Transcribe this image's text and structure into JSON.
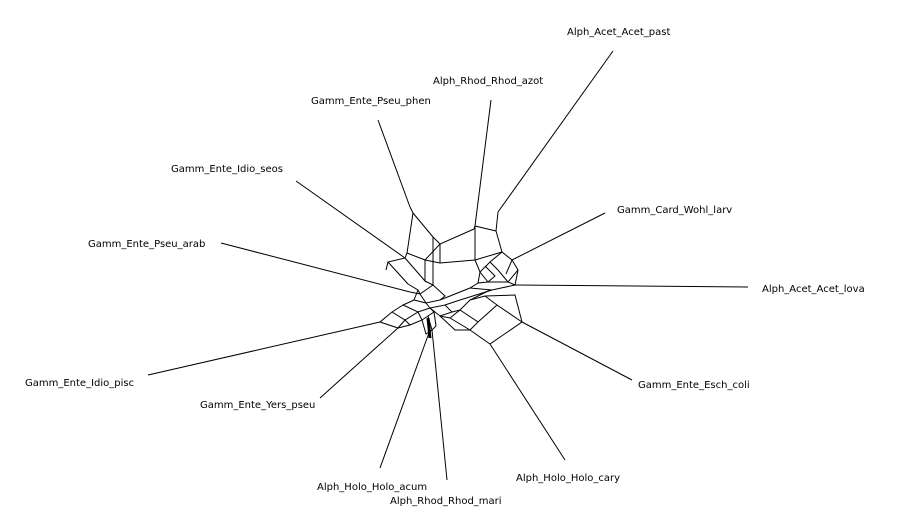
{
  "network": {
    "taxa": [
      "Alph_Acet_Acet_past",
      "Alph_Rhod_Rhod_azot",
      "Gamm_Ente_Pseu_phen",
      "Gamm_Ente_Idio_seos",
      "Gamm_Card_Wohl_larv",
      "Gamm_Ente_Pseu_arab",
      "Alph_Acet_Acet_lova",
      "Gamm_Ente_Idio_pisc",
      "Gamm_Ente_Esch_coli",
      "Gamm_Ente_Yers_pseu",
      "Alph_Holo_Holo_cary",
      "Alph_Holo_Holo_acum",
      "Alph_Rhod_Rhod_mari"
    ]
  },
  "colors": {
    "background": "#ffffff",
    "edges": "#000000",
    "labels": "#000000"
  }
}
